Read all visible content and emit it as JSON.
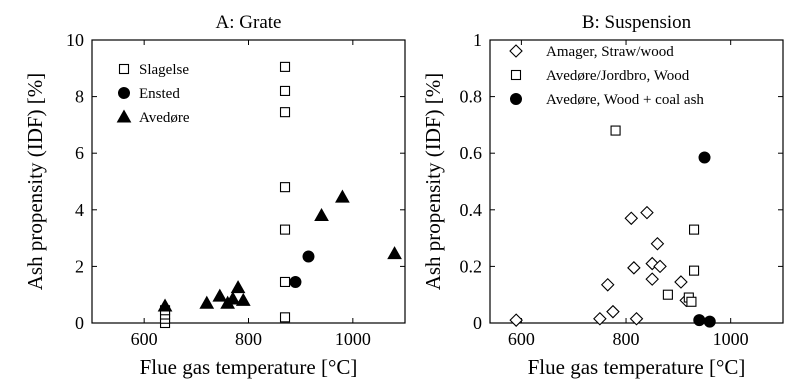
{
  "chart_data": [
    {
      "type": "scatter",
      "title": "A: Grate",
      "xlabel": "Flue gas temperature [°C]",
      "ylabel": "Ash propensity (IDF) [%]",
      "xlim": [
        500,
        1100
      ],
      "ylim": [
        0,
        10
      ],
      "xticks": [
        600,
        800,
        1000
      ],
      "yticks": [
        0,
        2,
        4,
        6,
        8,
        10
      ],
      "legend_position": "top-left",
      "series": [
        {
          "name": "Slagelse",
          "marker": "square-open",
          "points": [
            [
              640,
              0.0
            ],
            [
              640,
              0.15
            ],
            [
              640,
              0.3
            ],
            [
              640,
              0.45
            ],
            [
              870,
              0.2
            ],
            [
              870,
              1.45
            ],
            [
              870,
              3.3
            ],
            [
              870,
              4.8
            ],
            [
              870,
              7.45
            ],
            [
              870,
              8.2
            ],
            [
              870,
              9.05
            ]
          ]
        },
        {
          "name": "Ensted",
          "marker": "circle-filled",
          "points": [
            [
              890,
              1.45
            ],
            [
              915,
              2.35
            ]
          ]
        },
        {
          "name": "Avedøre",
          "marker": "triangle-filled",
          "points": [
            [
              640,
              0.6
            ],
            [
              720,
              0.7
            ],
            [
              745,
              0.95
            ],
            [
              760,
              0.7
            ],
            [
              770,
              0.85
            ],
            [
              780,
              1.25
            ],
            [
              790,
              0.8
            ],
            [
              940,
              3.8
            ],
            [
              980,
              4.45
            ],
            [
              1080,
              2.45
            ]
          ]
        }
      ]
    },
    {
      "type": "scatter",
      "title": "B: Suspension",
      "xlabel": "Flue gas temperature [°C]",
      "ylabel": "Ash propensity (IDF) [%]",
      "xlim": [
        540,
        1100
      ],
      "ylim": [
        0,
        1
      ],
      "xticks": [
        600,
        800,
        1000
      ],
      "yticks": [
        0,
        0.2,
        0.4,
        0.6,
        0.8,
        1
      ],
      "legend_position": "top-left",
      "series": [
        {
          "name": "Amager, Straw/wood",
          "marker": "diamond-open",
          "points": [
            [
              590,
              0.01
            ],
            [
              750,
              0.015
            ],
            [
              765,
              0.135
            ],
            [
              775,
              0.04
            ],
            [
              810,
              0.37
            ],
            [
              815,
              0.195
            ],
            [
              820,
              0.015
            ],
            [
              840,
              0.39
            ],
            [
              850,
              0.21
            ],
            [
              850,
              0.155
            ],
            [
              860,
              0.28
            ],
            [
              865,
              0.2
            ],
            [
              905,
              0.145
            ],
            [
              915,
              0.08
            ]
          ]
        },
        {
          "name": "Avedøre/Jordbro, Wood",
          "marker": "square-open",
          "points": [
            [
              780,
              0.68
            ],
            [
              880,
              0.1
            ],
            [
              920,
              0.09
            ],
            [
              925,
              0.075
            ],
            [
              930,
              0.33
            ],
            [
              930,
              0.185
            ]
          ]
        },
        {
          "name": "Avedøre, Wood + coal ash",
          "marker": "circle-filled",
          "points": [
            [
              950,
              0.585
            ],
            [
              940,
              0.01
            ],
            [
              960,
              0.005
            ]
          ]
        }
      ]
    }
  ]
}
